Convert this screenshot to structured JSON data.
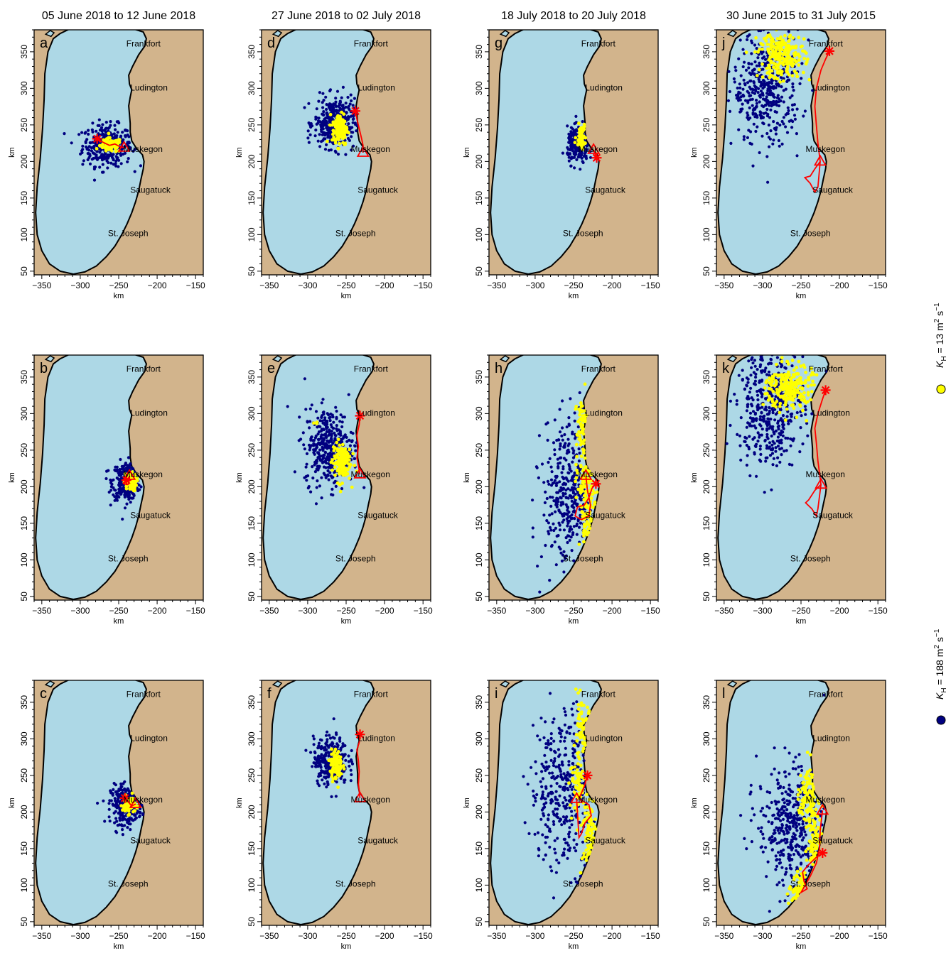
{
  "column_titles": [
    "05 June 2018 to 12 June 2018",
    "27 June 2018 to 02 July 2018",
    "18 July 2018 to 20 July 2018",
    "30 June 2015 to 31 July 2015"
  ],
  "panel_letters": [
    [
      "a",
      "d",
      "g",
      "j"
    ],
    [
      "b",
      "e",
      "h",
      "k"
    ],
    [
      "c",
      "f",
      "i",
      "l"
    ]
  ],
  "axes": {
    "x_label": "km",
    "y_label": "km",
    "x_ticks": [
      "−350",
      "−300",
      "−250",
      "−200",
      "−150"
    ],
    "y_ticks": [
      "50",
      "100",
      "150",
      "200",
      "250",
      "300",
      "350"
    ],
    "x_range": [
      -360,
      -140
    ],
    "y_range": [
      45,
      380
    ]
  },
  "cities": [
    {
      "name": "Frankfort",
      "y": 361
    },
    {
      "name": "Ludington",
      "y": 301
    },
    {
      "name": "Muskegon",
      "y": 217
    },
    {
      "name": "Saugatuck",
      "y": 161
    },
    {
      "name": "St. Joseph",
      "y": 102
    }
  ],
  "legend": {
    "yellow": {
      "prefix": "K",
      "sub": "H",
      "text": " = 13 m",
      "sup": "2",
      "tail": " s",
      "tailsup": "−1"
    },
    "blue": {
      "prefix": "K",
      "sub": "H",
      "text": " = 188 m",
      "sup": "2",
      "tail": " s",
      "tailsup": "−1"
    }
  },
  "colors": {
    "land": "#d2b48c",
    "water": "#add8e6",
    "coast": "#000000",
    "particles_kh188": "#000080",
    "particles_kh13": "#ffff00",
    "track": "#ff0000"
  },
  "map_data": {
    "panels": [
      {
        "id": "a",
        "start": [
          -278,
          231
        ],
        "end": [
          -243,
          219
        ],
        "blue": {
          "c": [
            -265,
            222
          ],
          "s": [
            16,
            14
          ],
          "n": 330
        },
        "yellow": [
          {
            "c": [
              -260,
              222
            ],
            "s": [
              7,
              5
            ],
            "n": 90
          }
        ],
        "track": [
          [
            -278,
            231
          ],
          [
            -270,
            226
          ],
          [
            -262,
            222
          ],
          [
            -255,
            224
          ],
          [
            -248,
            220
          ],
          [
            -243,
            219
          ]
        ]
      },
      {
        "id": "b",
        "start": [
          -240,
          209
        ],
        "end": [
          -236,
          215
        ],
        "blue": {
          "c": [
            -240,
            208
          ],
          "s": [
            9,
            13
          ],
          "n": 300
        },
        "yellow": [
          {
            "c": [
              -235,
              206
            ],
            "s": [
              4,
              6
            ],
            "n": 90
          }
        ],
        "track": [
          [
            -240,
            209
          ],
          [
            -243,
            204
          ],
          [
            -238,
            203
          ],
          [
            -236,
            209
          ],
          [
            -236,
            215
          ]
        ]
      },
      {
        "id": "c",
        "start": [
          -242,
          219
        ],
        "end": [
          -228,
          211
        ],
        "blue": {
          "c": [
            -240,
            210
          ],
          "s": [
            10,
            13
          ],
          "n": 300
        },
        "yellow": [
          {
            "c": [
              -237,
              210
            ],
            "s": [
              4,
              6
            ],
            "n": 90
          }
        ],
        "track": [
          [
            -242,
            219
          ],
          [
            -236,
            212
          ],
          [
            -233,
            208
          ],
          [
            -228,
            211
          ]
        ]
      },
      {
        "id": "d",
        "start": [
          -238,
          269
        ],
        "end": [
          -228,
          212
        ],
        "blue": {
          "c": [
            -265,
            252
          ],
          "s": [
            13,
            17
          ],
          "n": 380
        },
        "yellow": [
          {
            "c": [
              -258,
              244
            ],
            "s": [
              5,
              11
            ],
            "n": 130
          }
        ],
        "track": [
          [
            -238,
            269
          ],
          [
            -236,
            258
          ],
          [
            -233,
            245
          ],
          [
            -230,
            232
          ],
          [
            -228,
            222
          ],
          [
            -228,
            212
          ]
        ]
      },
      {
        "id": "e",
        "start": [
          -232,
          297
        ],
        "end": [
          -232,
          217
        ],
        "blue": {
          "c": [
            -272,
            255
          ],
          "s": [
            16,
            26
          ],
          "n": 380
        },
        "yellow": [
          {
            "c": [
              -256,
              235
            ],
            "s": [
              6,
              14
            ],
            "n": 130
          },
          {
            "c": [
              -290,
              285
            ],
            "s": [
              3,
              3
            ],
            "n": 4
          }
        ],
        "track": [
          [
            -232,
            297
          ],
          [
            -233,
            285
          ],
          [
            -236,
            270
          ],
          [
            -234,
            255
          ],
          [
            -236,
            240
          ],
          [
            -234,
            228
          ],
          [
            -232,
            217
          ]
        ]
      },
      {
        "id": "f",
        "start": [
          -232,
          306
        ],
        "end": [
          -232,
          219
        ],
        "blue": {
          "c": [
            -270,
            270
          ],
          "s": [
            11,
            16
          ],
          "n": 320
        },
        "yellow": [
          {
            "c": [
              -263,
              265
            ],
            "s": [
              4,
              10
            ],
            "n": 110
          }
        ],
        "track": [
          [
            -232,
            306
          ],
          [
            -233,
            295
          ],
          [
            -236,
            285
          ],
          [
            -234,
            270
          ],
          [
            -233,
            255
          ],
          [
            -234,
            238
          ],
          [
            -232,
            219
          ]
        ]
      },
      {
        "id": "g",
        "start": [
          -220,
          205
        ],
        "end": [
          -224,
          216
        ],
        "blue": {
          "c": [
            -244,
            222
          ],
          "s": [
            7,
            12
          ],
          "n": 240
        },
        "yellow": [
          {
            "c": [
              -240,
              235
            ],
            "s": [
              3,
              8
            ],
            "n": 70
          }
        ],
        "track": [
          [
            -220,
            205
          ],
          [
            -222,
            210
          ],
          [
            -224,
            216
          ]
        ]
      },
      {
        "id": "h",
        "start": [
          -221,
          204
        ],
        "end": [
          -234,
          215
        ],
        "blue": {
          "c": [
            -256,
            190
          ],
          "s": [
            17,
            50
          ],
          "n": 360
        },
        "yellow": [
          {
            "c": [
              -236,
              280
            ],
            "s": [
              5,
              22
            ],
            "n": 60
          },
          {
            "c": [
              -234,
              205
            ],
            "s": [
              6,
              18
            ],
            "n": 70
          },
          {
            "c": [
              -230,
              140
            ],
            "s": [
              5,
              28
            ],
            "n": 60
          }
        ],
        "track": [
          [
            -221,
            204
          ],
          [
            -226,
            198
          ],
          [
            -230,
            185
          ],
          [
            -236,
            175
          ],
          [
            -245,
            172
          ],
          [
            -248,
            160
          ],
          [
            -240,
            155
          ],
          [
            -230,
            160
          ],
          [
            -228,
            175
          ],
          [
            -232,
            195
          ],
          [
            -234,
            215
          ]
        ]
      },
      {
        "id": "i",
        "start": [
          -232,
          250
        ],
        "end": [
          -246,
          218
        ],
        "blue": {
          "c": [
            -262,
            232
          ],
          "s": [
            22,
            55
          ],
          "n": 360
        },
        "yellow": [
          {
            "c": [
              -238,
              305
            ],
            "s": [
              6,
              22
            ],
            "n": 60
          },
          {
            "c": [
              -243,
              235
            ],
            "s": [
              6,
              18
            ],
            "n": 60
          },
          {
            "c": [
              -228,
              155
            ],
            "s": [
              5,
              35
            ],
            "n": 70
          }
        ],
        "track": [
          [
            -232,
            250
          ],
          [
            -236,
            235
          ],
          [
            -243,
            218
          ],
          [
            -230,
            210
          ],
          [
            -227,
            195
          ],
          [
            -235,
            185
          ],
          [
            -240,
            170
          ],
          [
            -243,
            165
          ],
          [
            -246,
            218
          ]
        ]
      },
      {
        "id": "j",
        "start": [
          -213,
          351
        ],
        "end": [
          -225,
          200
        ],
        "blue": {
          "c": [
            -295,
            300
          ],
          "s": [
            22,
            38
          ],
          "n": 420
        },
        "yellow": [
          {
            "c": [
              -275,
              345
            ],
            "s": [
              15,
              16
            ],
            "n": 220
          }
        ],
        "track": [
          [
            -213,
            351
          ],
          [
            -218,
            340
          ],
          [
            -224,
            325
          ],
          [
            -230,
            300
          ],
          [
            -232,
            275
          ],
          [
            -230,
            250
          ],
          [
            -228,
            225
          ],
          [
            -225,
            200
          ],
          [
            -232,
            190
          ],
          [
            -238,
            180
          ],
          [
            -245,
            178
          ],
          [
            -238,
            170
          ],
          [
            -232,
            158
          ],
          [
            -228,
            165
          ],
          [
            -225,
            200
          ]
        ]
      },
      {
        "id": "k",
        "start": [
          -218,
          332
        ],
        "end": [
          -224,
          203
        ],
        "blue": {
          "c": [
            -290,
            310
          ],
          "s": [
            22,
            40
          ],
          "n": 420
        },
        "yellow": [
          {
            "c": [
              -265,
              335
            ],
            "s": [
              15,
              16
            ],
            "n": 220
          }
        ],
        "track": [
          [
            -218,
            332
          ],
          [
            -222,
            320
          ],
          [
            -228,
            300
          ],
          [
            -232,
            280
          ],
          [
            -230,
            260
          ],
          [
            -228,
            235
          ],
          [
            -224,
            203
          ],
          [
            -232,
            195
          ],
          [
            -240,
            182
          ],
          [
            -244,
            178
          ],
          [
            -236,
            170
          ],
          [
            -230,
            160
          ],
          [
            -228,
            170
          ],
          [
            -224,
            203
          ]
        ]
      },
      {
        "id": "l",
        "start": [
          -222,
          144
        ],
        "end": [
          -222,
          202
        ],
        "blue": {
          "c": [
            -262,
            180
          ],
          "s": [
            22,
            42
          ],
          "n": 400
        },
        "yellow": [
          {
            "c": [
              -240,
              225
            ],
            "s": [
              6,
              22
            ],
            "n": 100
          },
          {
            "c": [
              -232,
              160
            ],
            "s": [
              5,
              20
            ],
            "n": 70
          },
          {
            "c": [
              -250,
              85
            ],
            "s": [
              6,
              15
            ],
            "n": 50
          }
        ],
        "track": [
          [
            -222,
            144
          ],
          [
            -230,
            138
          ],
          [
            -240,
            128
          ],
          [
            -248,
            118
          ],
          [
            -246,
            105
          ],
          [
            -242,
            95
          ],
          [
            -250,
            90
          ],
          [
            -238,
            112
          ],
          [
            -230,
            130
          ],
          [
            -226,
            150
          ],
          [
            -225,
            175
          ],
          [
            -222,
            202
          ]
        ]
      }
    ]
  }
}
